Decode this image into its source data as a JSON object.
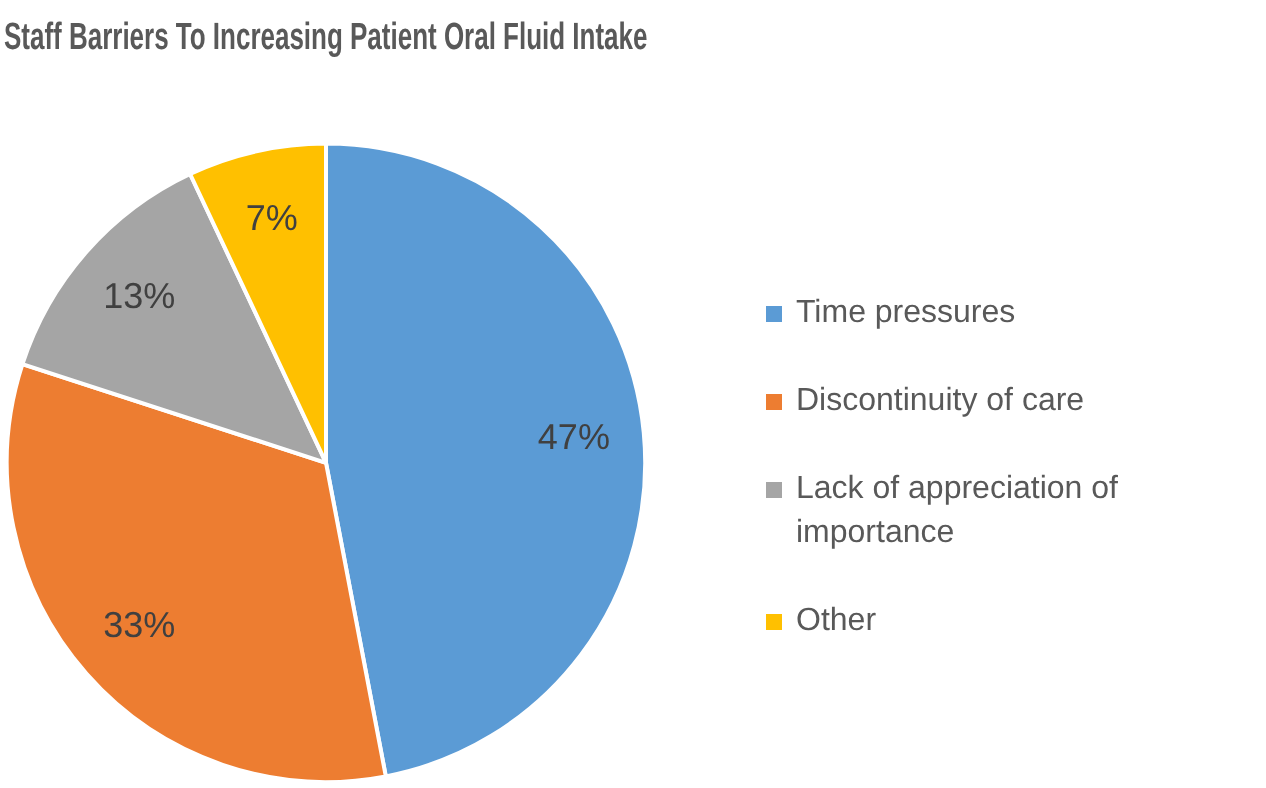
{
  "chart_data": {
    "type": "pie",
    "title": "Staff Barriers To Increasing Patient Oral Fluid Intake",
    "categories": [
      "Time pressures",
      "Discontinuity of care",
      "Lack of appreciation of importance",
      "Other"
    ],
    "values": [
      47,
      33,
      13,
      7
    ],
    "value_labels": [
      "47%",
      "33%",
      "13%",
      "7%"
    ],
    "colors": [
      "#5b9bd5",
      "#ed7d31",
      "#a5a5a5",
      "#ffc000"
    ],
    "legend": "right"
  }
}
